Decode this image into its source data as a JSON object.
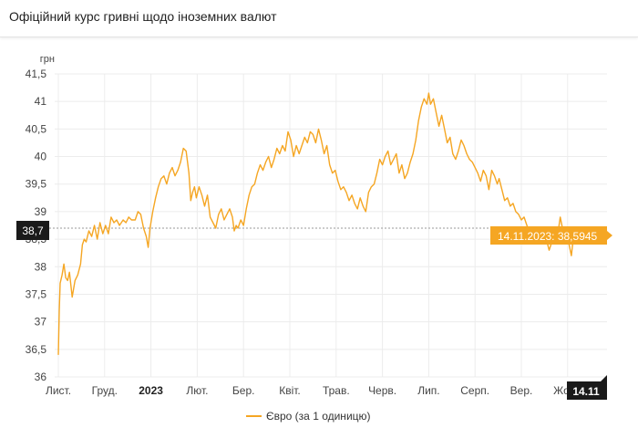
{
  "header": {
    "title": "Офіційний курс гривні щодо іноземних валют"
  },
  "chart_data": {
    "type": "line",
    "ylabel": "грн",
    "ylim": [
      36,
      41.5
    ],
    "y_ticks": [
      "36",
      "36,5",
      "37",
      "37,5",
      "38",
      "38,5",
      "39",
      "39,5",
      "40",
      "40,5",
      "41",
      "41,5"
    ],
    "x_ticks": [
      {
        "label": "Лист.",
        "x": 0
      },
      {
        "label": "Груд.",
        "x": 1
      },
      {
        "label": "2023",
        "x": 2,
        "bold": true
      },
      {
        "label": "Лют.",
        "x": 3
      },
      {
        "label": "Бер.",
        "x": 4
      },
      {
        "label": "Квіт.",
        "x": 5
      },
      {
        "label": "Трав.",
        "x": 6
      },
      {
        "label": "Черв.",
        "x": 7
      },
      {
        "label": "Лип.",
        "x": 8
      },
      {
        "label": "Серп.",
        "x": 9
      },
      {
        "label": "Вер.",
        "x": 10
      },
      {
        "label": "Жовт.",
        "x": 11
      }
    ],
    "xlim": [
      0,
      12.05
    ],
    "grid": true,
    "series": [
      {
        "name": "Євро (за 1 одиницю)",
        "color": "#f5a623",
        "points": [
          [
            0.0,
            36.4
          ],
          [
            0.02,
            37.2
          ],
          [
            0.04,
            37.7
          ],
          [
            0.08,
            37.85
          ],
          [
            0.12,
            38.05
          ],
          [
            0.16,
            37.8
          ],
          [
            0.2,
            37.75
          ],
          [
            0.24,
            37.9
          ],
          [
            0.3,
            37.45
          ],
          [
            0.36,
            37.75
          ],
          [
            0.42,
            37.85
          ],
          [
            0.48,
            38.05
          ],
          [
            0.52,
            38.4
          ],
          [
            0.56,
            38.5
          ],
          [
            0.6,
            38.45
          ],
          [
            0.66,
            38.65
          ],
          [
            0.72,
            38.55
          ],
          [
            0.78,
            38.75
          ],
          [
            0.84,
            38.5
          ],
          [
            0.9,
            38.8
          ],
          [
            0.96,
            38.6
          ],
          [
            1.02,
            38.75
          ],
          [
            1.08,
            38.6
          ],
          [
            1.14,
            38.9
          ],
          [
            1.2,
            38.8
          ],
          [
            1.26,
            38.85
          ],
          [
            1.32,
            38.75
          ],
          [
            1.4,
            38.85
          ],
          [
            1.46,
            38.8
          ],
          [
            1.52,
            38.9
          ],
          [
            1.58,
            38.85
          ],
          [
            1.66,
            38.85
          ],
          [
            1.72,
            39.0
          ],
          [
            1.78,
            38.95
          ],
          [
            1.84,
            38.7
          ],
          [
            1.9,
            38.55
          ],
          [
            1.94,
            38.35
          ],
          [
            1.98,
            38.7
          ],
          [
            2.04,
            39.0
          ],
          [
            2.1,
            39.25
          ],
          [
            2.16,
            39.45
          ],
          [
            2.22,
            39.6
          ],
          [
            2.28,
            39.65
          ],
          [
            2.34,
            39.5
          ],
          [
            2.4,
            39.7
          ],
          [
            2.46,
            39.8
          ],
          [
            2.52,
            39.65
          ],
          [
            2.58,
            39.75
          ],
          [
            2.64,
            39.9
          ],
          [
            2.7,
            40.15
          ],
          [
            2.76,
            40.1
          ],
          [
            2.82,
            39.7
          ],
          [
            2.86,
            39.2
          ],
          [
            2.9,
            39.35
          ],
          [
            2.94,
            39.45
          ],
          [
            2.98,
            39.25
          ],
          [
            3.04,
            39.45
          ],
          [
            3.1,
            39.3
          ],
          [
            3.16,
            39.1
          ],
          [
            3.22,
            39.3
          ],
          [
            3.28,
            38.9
          ],
          [
            3.34,
            38.8
          ],
          [
            3.4,
            38.7
          ],
          [
            3.46,
            38.95
          ],
          [
            3.52,
            39.05
          ],
          [
            3.58,
            38.85
          ],
          [
            3.64,
            38.95
          ],
          [
            3.7,
            39.05
          ],
          [
            3.76,
            38.9
          ],
          [
            3.8,
            38.65
          ],
          [
            3.84,
            38.75
          ],
          [
            3.88,
            38.7
          ],
          [
            3.94,
            38.85
          ],
          [
            4.0,
            38.75
          ],
          [
            4.06,
            39.05
          ],
          [
            4.12,
            39.3
          ],
          [
            4.18,
            39.45
          ],
          [
            4.24,
            39.5
          ],
          [
            4.3,
            39.7
          ],
          [
            4.36,
            39.85
          ],
          [
            4.42,
            39.75
          ],
          [
            4.48,
            39.9
          ],
          [
            4.54,
            40.0
          ],
          [
            4.6,
            39.8
          ],
          [
            4.66,
            39.95
          ],
          [
            4.72,
            40.15
          ],
          [
            4.78,
            40.05
          ],
          [
            4.84,
            40.2
          ],
          [
            4.9,
            40.1
          ],
          [
            4.96,
            40.45
          ],
          [
            5.02,
            40.3
          ],
          [
            5.08,
            40.0
          ],
          [
            5.14,
            40.2
          ],
          [
            5.2,
            40.05
          ],
          [
            5.26,
            40.2
          ],
          [
            5.32,
            40.35
          ],
          [
            5.38,
            40.25
          ],
          [
            5.44,
            40.45
          ],
          [
            5.5,
            40.4
          ],
          [
            5.56,
            40.25
          ],
          [
            5.62,
            40.5
          ],
          [
            5.68,
            40.3
          ],
          [
            5.74,
            40.05
          ],
          [
            5.8,
            40.2
          ],
          [
            5.86,
            39.85
          ],
          [
            5.92,
            39.7
          ],
          [
            5.98,
            39.75
          ],
          [
            6.04,
            39.55
          ],
          [
            6.1,
            39.4
          ],
          [
            6.16,
            39.45
          ],
          [
            6.22,
            39.35
          ],
          [
            6.28,
            39.2
          ],
          [
            6.34,
            39.3
          ],
          [
            6.4,
            39.15
          ],
          [
            6.46,
            39.05
          ],
          [
            6.52,
            39.25
          ],
          [
            6.58,
            39.1
          ],
          [
            6.64,
            39.0
          ],
          [
            6.7,
            39.35
          ],
          [
            6.76,
            39.45
          ],
          [
            6.82,
            39.5
          ],
          [
            6.88,
            39.7
          ],
          [
            6.94,
            39.95
          ],
          [
            7.0,
            39.85
          ],
          [
            7.06,
            40.0
          ],
          [
            7.12,
            40.1
          ],
          [
            7.18,
            39.85
          ],
          [
            7.24,
            39.95
          ],
          [
            7.3,
            40.05
          ],
          [
            7.36,
            39.7
          ],
          [
            7.42,
            39.85
          ],
          [
            7.48,
            39.6
          ],
          [
            7.54,
            39.7
          ],
          [
            7.6,
            39.9
          ],
          [
            7.66,
            40.05
          ],
          [
            7.72,
            40.3
          ],
          [
            7.78,
            40.65
          ],
          [
            7.84,
            40.9
          ],
          [
            7.9,
            41.05
          ],
          [
            7.96,
            40.95
          ],
          [
            8.0,
            41.15
          ],
          [
            8.04,
            40.95
          ],
          [
            8.1,
            41.05
          ],
          [
            8.16,
            40.8
          ],
          [
            8.22,
            40.55
          ],
          [
            8.28,
            40.75
          ],
          [
            8.34,
            40.5
          ],
          [
            8.4,
            40.25
          ],
          [
            8.46,
            40.35
          ],
          [
            8.52,
            40.05
          ],
          [
            8.58,
            39.95
          ],
          [
            8.64,
            40.1
          ],
          [
            8.7,
            40.3
          ],
          [
            8.76,
            40.2
          ],
          [
            8.82,
            40.05
          ],
          [
            8.88,
            39.95
          ],
          [
            8.94,
            39.9
          ],
          [
            9.0,
            39.8
          ],
          [
            9.06,
            39.7
          ],
          [
            9.12,
            39.55
          ],
          [
            9.18,
            39.75
          ],
          [
            9.24,
            39.65
          ],
          [
            9.3,
            39.4
          ],
          [
            9.36,
            39.75
          ],
          [
            9.42,
            39.65
          ],
          [
            9.48,
            39.5
          ],
          [
            9.52,
            39.6
          ],
          [
            9.58,
            39.4
          ],
          [
            9.64,
            39.2
          ],
          [
            9.7,
            39.25
          ],
          [
            9.76,
            39.1
          ],
          [
            9.82,
            39.15
          ],
          [
            9.88,
            39.0
          ],
          [
            9.94,
            38.95
          ],
          [
            10.0,
            38.85
          ],
          [
            10.06,
            38.9
          ],
          [
            10.12,
            38.75
          ],
          [
            10.18,
            38.6
          ],
          [
            10.24,
            38.45
          ],
          [
            10.3,
            38.6
          ],
          [
            10.36,
            38.65
          ],
          [
            10.42,
            38.55
          ],
          [
            10.48,
            38.7
          ],
          [
            10.54,
            38.5
          ],
          [
            10.6,
            38.3
          ],
          [
            10.66,
            38.45
          ],
          [
            10.72,
            38.6
          ],
          [
            10.78,
            38.55
          ],
          [
            10.84,
            38.9
          ],
          [
            10.9,
            38.65
          ],
          [
            10.96,
            38.55
          ],
          [
            11.02,
            38.45
          ],
          [
            11.08,
            38.2
          ],
          [
            11.12,
            38.5
          ],
          [
            11.18,
            38.65
          ],
          [
            11.24,
            38.55
          ],
          [
            11.28,
            38.59
          ]
        ]
      }
    ],
    "crosshair": {
      "y_label": "38,7",
      "y_value": 38.7,
      "x_label": "14.11",
      "x_value": 11.28
    },
    "tooltip": {
      "text": "14.11.2023: 38,5945",
      "x_value": 11.28,
      "y_value": 38.5945
    }
  }
}
